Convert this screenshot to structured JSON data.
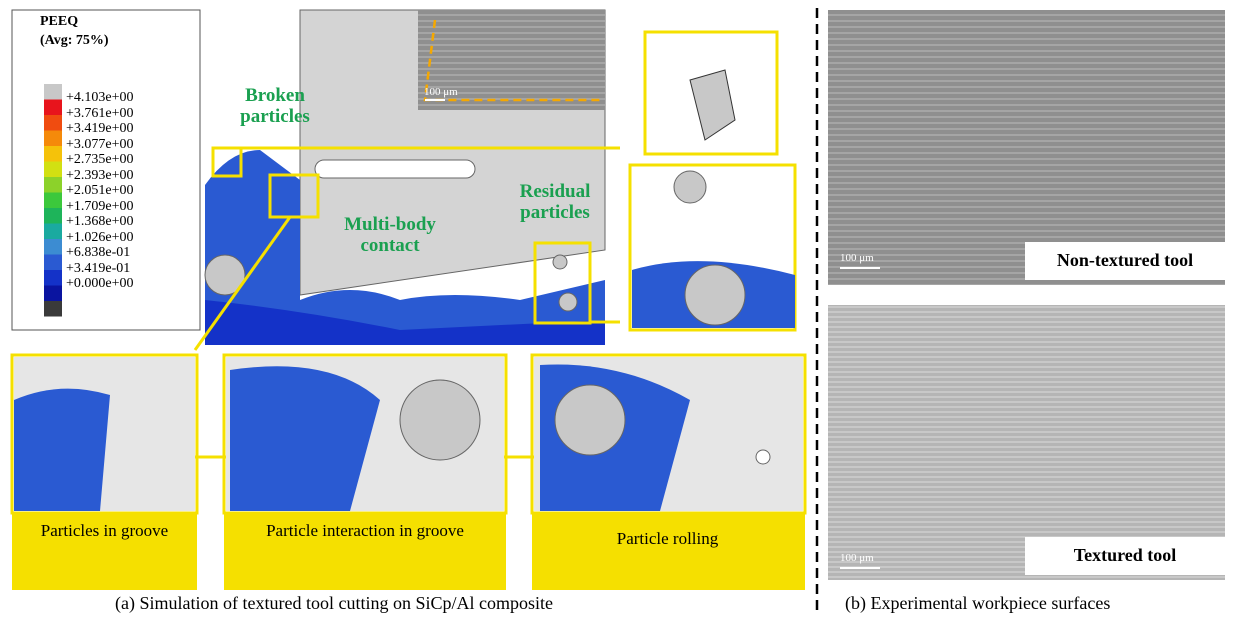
{
  "legend": {
    "title": "PEEQ",
    "subtitle": "(Avg: 75%)",
    "labels": [
      "+4.103e+00",
      "+3.761e+00",
      "+3.419e+00",
      "+3.077e+00",
      "+2.735e+00",
      "+2.393e+00",
      "+2.051e+00",
      "+1.709e+00",
      "+1.368e+00",
      "+1.026e+00",
      "+6.838e-01",
      "+3.419e-01",
      "+0.000e+00"
    ],
    "colors": [
      "#c8c8c8",
      "#e8141c",
      "#f04c10",
      "#f58a0a",
      "#f5c20a",
      "#d2e012",
      "#8cd22a",
      "#3cc83c",
      "#1eb45a",
      "#1aaaa0",
      "#3c8cd2",
      "#2a5ad2",
      "#1432c8",
      "#0a14a0",
      "#3a3a3a"
    ]
  },
  "annotations": {
    "broken": "Broken particles",
    "multibody": "Multi-body contact",
    "residual": "Residual particles",
    "inset_scale": "100 μm"
  },
  "panels": [
    "Particles in groove",
    "Particle interaction in groove",
    "Particle rolling"
  ],
  "captions": {
    "a": "(a) Simulation of textured tool cutting on SiCp/Al composite",
    "b": "(b) Experimental workpiece surfaces"
  },
  "sem": [
    {
      "label": "Non-textured tool",
      "scale": "100 μm"
    },
    {
      "label": "Textured tool",
      "scale": "100 μm"
    }
  ]
}
